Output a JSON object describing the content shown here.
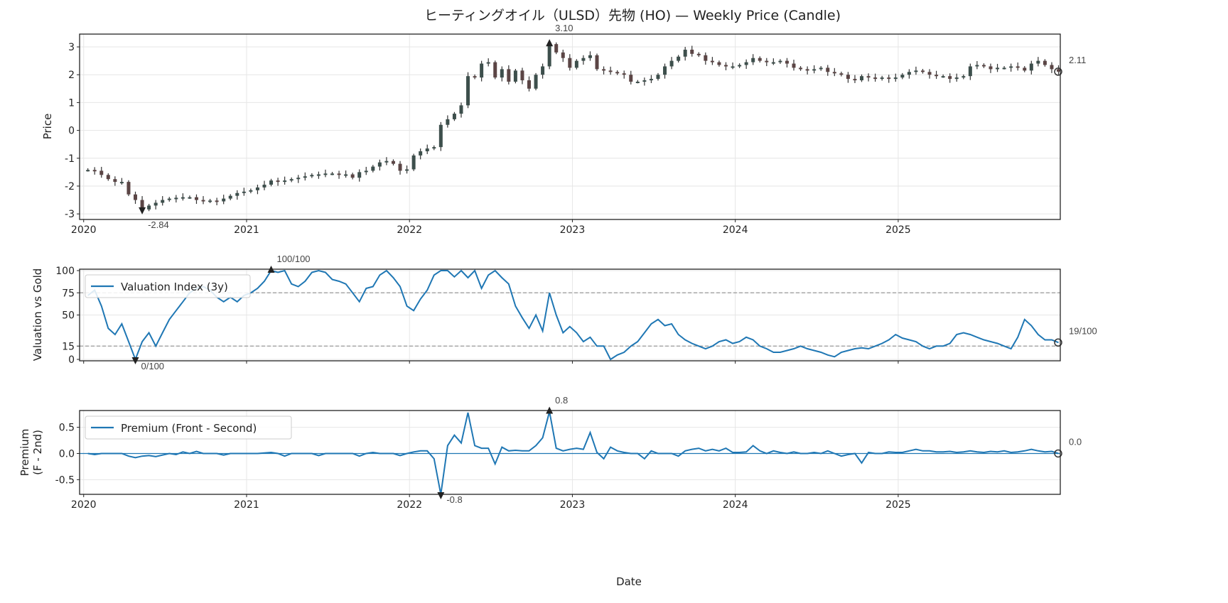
{
  "chart_data": [
    {
      "type": "candlestick",
      "title": "ヒーティングオイル（ULSD）先物 (HO) — Weekly Price (Candle)",
      "ylabel": "Price",
      "xlabel": "",
      "ylim": [
        -3.2,
        3.46
      ],
      "yticks": [
        3,
        2,
        1,
        0,
        -1,
        -2,
        -3
      ],
      "xticks": [
        "2020",
        "2021",
        "2022",
        "2023",
        "2024",
        "2025"
      ],
      "grid": true,
      "colors": {
        "up": "#3d4f4c",
        "down": "#5b4545",
        "wick": "#333333"
      },
      "annotations": {
        "max": "3.10",
        "min": "-2.84",
        "last": "2.11"
      }
    },
    {
      "type": "line",
      "ylabel": "Valuation vs Gold",
      "ylim": [
        -1.6,
        101.6
      ],
      "yticks": [
        100,
        75,
        50,
        15,
        0
      ],
      "reference_lines": [
        75,
        15
      ],
      "legend": {
        "label": "Valuation Index (3y)",
        "placement": "upper-left"
      },
      "color": "#1f77b4",
      "grid": true,
      "annotations": {
        "max": "100/100",
        "min": "0/100",
        "last": "19/100"
      }
    },
    {
      "type": "line",
      "ylabel": "Premium\n(F - 2nd)",
      "ylabel_lines": [
        "Premium",
        "(F - 2nd)"
      ],
      "xlabel": "Date",
      "ylim": [
        -0.78,
        0.82
      ],
      "yticks": [
        0.5,
        0.0,
        -0.5
      ],
      "ytick_labels": [
        "0.5",
        "0.0",
        "-0.5"
      ],
      "xticks": [
        "2020",
        "2021",
        "2022",
        "2023",
        "2024",
        "2025"
      ],
      "reference_lines": [
        0
      ],
      "legend": {
        "label": "Premium (Front - Second)",
        "placement": "upper-left"
      },
      "color": "#1f77b4",
      "grid": true,
      "annotations": {
        "max": "0.8",
        "min": "-0.8",
        "last": "0.0"
      }
    }
  ],
  "series_columns": [
    "month",
    "price_close_a",
    "price_close_b",
    "valuation_a",
    "valuation_b",
    "premium_a",
    "premium_b"
  ],
  "series_rows": [
    [
      "2020-01",
      -1.42,
      -1.45,
      72,
      78,
      0,
      -0.02
    ],
    [
      "2020-02",
      -1.6,
      -1.75,
      60,
      35,
      0,
      0
    ],
    [
      "2020-03",
      -1.85,
      -1.85,
      28,
      40,
      0,
      0
    ],
    [
      "2020-04",
      -2.3,
      -2.5,
      20,
      0,
      -0.05,
      -0.08
    ],
    [
      "2020-05",
      -2.84,
      -2.7,
      20,
      30,
      -0.05,
      -0.04
    ],
    [
      "2020-06",
      -2.6,
      -2.5,
      15,
      30,
      -0.06,
      -0.03
    ],
    [
      "2020-07",
      -2.45,
      -2.42,
      45,
      55,
      0,
      -0.02
    ],
    [
      "2020-08",
      -2.4,
      -2.4,
      65,
      75,
      0.03,
      0
    ],
    [
      "2020-09",
      -2.5,
      -2.55,
      80,
      82,
      0.04,
      0
    ],
    [
      "2020-10",
      -2.52,
      -2.55,
      78,
      70,
      0,
      0
    ],
    [
      "2020-11",
      -2.45,
      -2.35,
      65,
      70,
      -0.03,
      0
    ],
    [
      "2020-12",
      -2.25,
      -2.2,
      65,
      72,
      0,
      0
    ],
    [
      "2021-01",
      -2.15,
      -2.05,
      75,
      80,
      0,
      0
    ],
    [
      "2021-02",
      -1.95,
      -1.8,
      88,
      100,
      0.01,
      0.02
    ],
    [
      "2021-03",
      -1.85,
      -1.8,
      98,
      100,
      0,
      -0.05
    ],
    [
      "2021-04",
      -1.75,
      -1.7,
      85,
      82,
      0,
      0
    ],
    [
      "2021-05",
      -1.65,
      -1.6,
      88,
      98,
      0,
      0
    ],
    [
      "2021-06",
      -1.58,
      -1.55,
      100,
      98,
      -0.04,
      0
    ],
    [
      "2021-07",
      -1.55,
      -1.6,
      90,
      88,
      0,
      0
    ],
    [
      "2021-08",
      -1.58,
      -1.7,
      85,
      75,
      0,
      0
    ],
    [
      "2021-09",
      -1.5,
      -1.45,
      65,
      80,
      -0.05,
      0
    ],
    [
      "2021-10",
      -1.3,
      -1.15,
      82,
      95,
      0.02,
      0
    ],
    [
      "2021-11",
      -1.1,
      -1.2,
      100,
      92,
      0,
      0
    ],
    [
      "2021-12",
      -1.45,
      -1.4,
      82,
      60,
      -0.04,
      0
    ],
    [
      "2022-01",
      -0.9,
      -0.75,
      55,
      68,
      0.03,
      0.05
    ],
    [
      "2022-02",
      -0.65,
      -0.6,
      78,
      95,
      0.05,
      -0.1
    ],
    [
      "2022-03",
      0.2,
      0.4,
      100,
      100,
      -0.78,
      0.15
    ],
    [
      "2022-04",
      0.6,
      0.9,
      93,
      100,
      0.35,
      0.2
    ],
    [
      "2022-05",
      1.95,
      1.9,
      92,
      100,
      0.78,
      0.15
    ],
    [
      "2022-06",
      2.4,
      2.45,
      80,
      95,
      0.1,
      0.1
    ],
    [
      "2022-07",
      1.9,
      2.2,
      100,
      92,
      -0.2,
      0.12
    ],
    [
      "2022-08",
      1.75,
      2.15,
      85,
      60,
      0.05,
      0.06
    ],
    [
      "2022-09",
      1.8,
      1.5,
      47,
      35,
      0.05,
      0.05
    ],
    [
      "2022-10",
      2.0,
      2.3,
      50,
      32,
      0.15,
      0.3
    ],
    [
      "2022-11",
      3.1,
      2.8,
      75,
      50,
      0.8,
      0.1
    ],
    [
      "2022-12",
      2.6,
      2.25,
      30,
      37,
      0.05,
      0.08
    ],
    [
      "2023-01",
      2.5,
      2.6,
      30,
      20,
      0.1,
      0.08
    ],
    [
      "2023-02",
      2.7,
      2.2,
      25,
      15,
      0.4,
      0.02
    ],
    [
      "2023-03",
      2.15,
      2.1,
      15,
      0,
      -0.1,
      0.12
    ],
    [
      "2023-04",
      2.05,
      2.0,
      5,
      8,
      0.05,
      0.02
    ],
    [
      "2023-05",
      1.75,
      1.75,
      15,
      20,
      0,
      0
    ],
    [
      "2023-06",
      1.8,
      1.85,
      30,
      40,
      -0.1,
      0.05
    ],
    [
      "2023-07",
      2.0,
      2.3,
      45,
      38,
      0,
      0
    ],
    [
      "2023-08",
      2.5,
      2.65,
      40,
      28,
      0,
      -0.05
    ],
    [
      "2023-09",
      2.9,
      2.75,
      22,
      18,
      0.05,
      0.08
    ],
    [
      "2023-10",
      2.7,
      2.5,
      15,
      12,
      0.1,
      0.05
    ],
    [
      "2023-11",
      2.45,
      2.35,
      15,
      20,
      0.08,
      0.05
    ],
    [
      "2023-12",
      2.3,
      2.3,
      22,
      18,
      0.1,
      0.02
    ],
    [
      "2024-01",
      2.35,
      2.45,
      20,
      25,
      0.02,
      0.03
    ],
    [
      "2024-02",
      2.6,
      2.5,
      22,
      15,
      0.15,
      0.05
    ],
    [
      "2024-03",
      2.45,
      2.45,
      12,
      8,
      0,
      0.05
    ],
    [
      "2024-04",
      2.5,
      2.4,
      8,
      10,
      0.02,
      0
    ],
    [
      "2024-05",
      2.25,
      2.2,
      12,
      15,
      0.03,
      0
    ],
    [
      "2024-06",
      2.15,
      2.2,
      12,
      10,
      0,
      0.02
    ],
    [
      "2024-07",
      2.25,
      2.1,
      8,
      5,
      0,
      0.05
    ],
    [
      "2024-08",
      2.05,
      2.0,
      3,
      8,
      0,
      -0.05
    ],
    [
      "2024-09",
      1.85,
      1.8,
      10,
      12,
      -0.02,
      0
    ],
    [
      "2024-10",
      1.95,
      1.9,
      13,
      12,
      -0.18,
      0.02
    ],
    [
      "2024-11",
      1.85,
      1.9,
      15,
      18,
      0,
      0
    ],
    [
      "2024-12",
      1.85,
      1.9,
      22,
      28,
      0.03,
      0.02
    ],
    [
      "2025-01",
      2.0,
      2.1,
      24,
      22,
      0.02,
      0.05
    ],
    [
      "2025-02",
      2.15,
      2.1,
      20,
      15,
      0.08,
      0.05
    ],
    [
      "2025-03",
      2.0,
      1.95,
      12,
      15,
      0.05,
      0.03
    ],
    [
      "2025-04",
      1.95,
      1.85,
      15,
      18,
      0.03,
      0.04
    ],
    [
      "2025-05",
      1.9,
      1.95,
      28,
      30,
      0.02,
      0.03
    ],
    [
      "2025-06",
      2.3,
      2.35,
      28,
      25,
      0.05,
      0.03
    ],
    [
      "2025-07",
      2.3,
      2.2,
      22,
      20,
      0.02,
      0.04
    ],
    [
      "2025-08",
      2.25,
      2.25,
      18,
      15,
      0.03,
      0.05
    ],
    [
      "2025-09",
      2.3,
      2.25,
      12,
      25,
      0.02,
      0.03
    ],
    [
      "2025-10",
      2.15,
      2.4,
      45,
      38,
      0.05,
      0.08
    ],
    [
      "2025-11",
      2.5,
      2.35,
      28,
      22,
      0.05,
      0.03
    ],
    [
      "2025-12",
      2.2,
      2.11,
      22,
      19,
      0.04,
      0.0
    ]
  ]
}
